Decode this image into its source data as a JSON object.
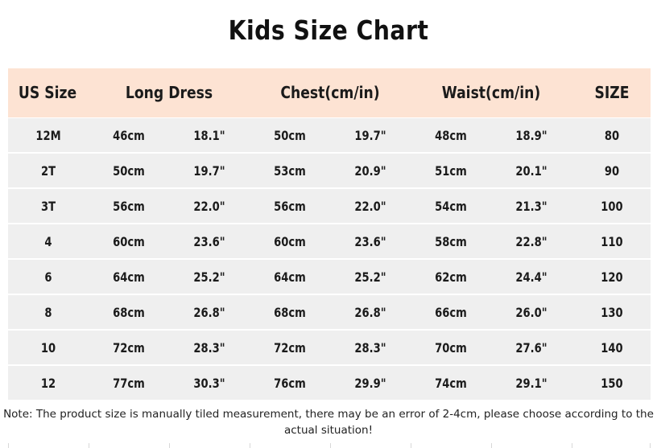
{
  "title": "Kids Size Chart",
  "headers": [
    "US Size",
    "Long Dress",
    "Chest(cm/in)",
    "Waist(cm/in)",
    "SIZE"
  ],
  "rows": [
    [
      "12M",
      "46cm",
      "18.1\"",
      "50cm",
      "19.7\"",
      "48cm",
      "18.9\"",
      "80"
    ],
    [
      "2T",
      "50cm",
      "19.7\"",
      "53cm",
      "20.9\"",
      "51cm",
      "20.1\"",
      "90"
    ],
    [
      "3T",
      "56cm",
      "22.0\"",
      "56cm",
      "22.0\"",
      "54cm",
      "21.3\"",
      "100"
    ],
    [
      "4",
      "60cm",
      "23.6\"",
      "60cm",
      "23.6\"",
      "58cm",
      "22.8\"",
      "110"
    ],
    [
      "6",
      "64cm",
      "25.2\"",
      "64cm",
      "25.2\"",
      "62cm",
      "24.4\"",
      "120"
    ],
    [
      "8",
      "68cm",
      "26.8\"",
      "68cm",
      "26.8\"",
      "66cm",
      "26.0\"",
      "130"
    ],
    [
      "10",
      "72cm",
      "28.3\"",
      "72cm",
      "28.3\"",
      "70cm",
      "27.6\"",
      "140"
    ],
    [
      "12",
      "77cm",
      "30.3\"",
      "76cm",
      "29.9\"",
      "74cm",
      "29.1\"",
      "150"
    ]
  ],
  "note": "Note: The product size is manually tiled measurement, there may be an error of 2-4cm, please choose according to the actual situation!",
  "colors": {
    "header_bg": "#fde3d3",
    "row_bg": "#efefef",
    "text": "#1b1b1b"
  }
}
